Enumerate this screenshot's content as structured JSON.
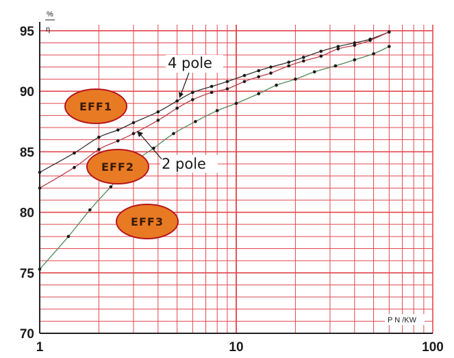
{
  "chart_data": {
    "type": "line",
    "xscale": "log",
    "xlim": [
      1,
      100
    ],
    "ylim": [
      70,
      95.5
    ],
    "xticks": [
      "1",
      "10",
      "100"
    ],
    "yticks": [
      "70",
      "75",
      "80",
      "85",
      "90",
      "95"
    ],
    "ylabel_top": "%",
    "ylabel_bottom": "η",
    "xlabel": "P N /KW",
    "grid": true,
    "colors": {
      "grid": "#e0464e",
      "four_pole": "#333333",
      "two_pole": "#b8404a",
      "eff3_curve": "#4f8a56",
      "badge_fill": "#e87a24",
      "badge_stroke": "#b5131b"
    },
    "series": [
      {
        "name": "4 pole",
        "x": [
          1,
          1.5,
          2,
          2.5,
          3,
          4,
          5,
          6,
          7.5,
          9,
          11,
          13,
          15,
          18.5,
          22,
          27,
          33,
          40,
          48,
          60
        ],
        "y": [
          83.3,
          84.9,
          86.2,
          86.8,
          87.4,
          88.3,
          89.2,
          89.9,
          90.4,
          90.8,
          91.3,
          91.7,
          92.0,
          92.4,
          92.8,
          93.3,
          93.7,
          94.0,
          94.3,
          94.9
        ]
      },
      {
        "name": "2 pole",
        "x": [
          1,
          1.5,
          2,
          2.5,
          3,
          4,
          5,
          6,
          7.5,
          9,
          11,
          13,
          15,
          18.5,
          22,
          27,
          33,
          40,
          48,
          60
        ],
        "y": [
          82.0,
          83.7,
          85.2,
          85.9,
          86.5,
          87.6,
          88.6,
          89.3,
          89.9,
          90.2,
          90.8,
          91.2,
          91.5,
          92.1,
          92.5,
          92.9,
          93.5,
          93.8,
          94.2,
          94.9
        ]
      },
      {
        "name": "",
        "x": [
          1,
          1.4,
          1.8,
          2.3,
          3,
          3.8,
          4.8,
          6.2,
          8,
          10,
          13,
          16,
          20,
          25,
          32,
          40,
          50,
          60
        ],
        "y": [
          75.3,
          78.0,
          80.2,
          82.1,
          84.1,
          85.3,
          86.5,
          87.5,
          88.4,
          89.0,
          89.8,
          90.5,
          91.0,
          91.6,
          92.1,
          92.6,
          93.1,
          93.7
        ]
      }
    ],
    "annotations": [
      {
        "text": "4 pole",
        "target_series": 0
      },
      {
        "text": "2 pole",
        "target_series": 1
      }
    ],
    "badges": [
      "EFF1",
      "EFF2",
      "EFF3"
    ]
  }
}
